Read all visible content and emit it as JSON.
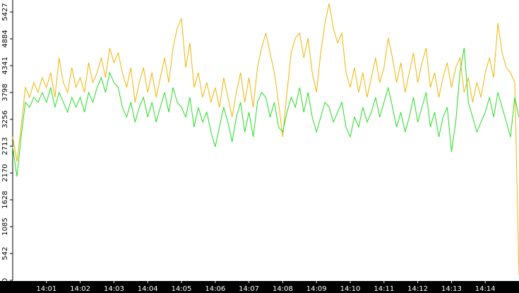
{
  "chart_data": {
    "type": "line",
    "x": [
      0,
      0.125,
      0.25,
      0.375,
      0.5,
      0.625,
      0.75,
      0.875,
      1,
      1.125,
      1.25,
      1.375,
      1.5,
      1.625,
      1.75,
      1.875,
      2,
      2.125,
      2.25,
      2.375,
      2.5,
      2.625,
      2.75,
      2.875,
      3,
      3.125,
      3.25,
      3.375,
      3.5,
      3.625,
      3.75,
      3.875,
      4,
      4.125,
      4.25,
      4.375,
      4.5,
      4.625,
      4.75,
      4.875,
      5,
      5.125,
      5.25,
      5.375,
      5.5,
      5.625,
      5.75,
      5.875,
      6,
      6.125,
      6.25,
      6.375,
      6.5,
      6.625,
      6.75,
      6.875,
      7,
      7.125,
      7.25,
      7.375,
      7.5,
      7.625,
      7.75,
      7.875,
      8,
      8.125,
      8.25,
      8.375,
      8.5,
      8.625,
      8.75,
      8.875,
      9,
      9.125,
      9.25,
      9.375,
      9.5,
      9.625,
      9.75,
      9.875,
      10,
      10.125,
      10.25,
      10.375,
      10.5,
      10.625,
      10.75,
      10.875,
      11,
      11.125,
      11.25,
      11.375,
      11.5,
      11.625,
      11.75,
      11.875,
      12,
      12.125,
      12.25,
      12.375,
      12.5,
      12.625,
      12.75,
      12.875,
      13,
      13.125,
      13.25,
      13.375,
      13.5,
      13.625,
      13.75,
      13.875,
      14,
      14.125,
      14.25,
      14.375,
      14.5,
      14.625,
      14.75,
      14.875,
      15
    ],
    "series": [
      {
        "color": "#f0b400",
        "values": [
          2900,
          2400,
          3100,
          3900,
          3700,
          4000,
          3800,
          4100,
          3900,
          4200,
          3700,
          4500,
          4000,
          3800,
          4300,
          3900,
          4100,
          3800,
          4400,
          4000,
          4200,
          4500,
          4100,
          4700,
          4400,
          4600,
          4200,
          3900,
          4300,
          3600,
          4000,
          4300,
          3800,
          4200,
          3700,
          4100,
          4500,
          4000,
          4700,
          5100,
          5300,
          4300,
          4800,
          3900,
          4200,
          3700,
          4000,
          3600,
          3900,
          3500,
          4100,
          3700,
          3300,
          3800,
          4200,
          3600,
          4100,
          3500,
          4300,
          4700,
          5000,
          4600,
          4200,
          3600,
          2900,
          3800,
          4600,
          4900,
          5000,
          4500,
          4900,
          4200,
          3800,
          4600,
          5200,
          5600,
          5100,
          4800,
          5000,
          4200,
          3900,
          4300,
          3800,
          4200,
          3700,
          4100,
          4500,
          4000,
          4300,
          4900,
          4500,
          4000,
          4400,
          3800,
          4200,
          4600,
          4000,
          4400,
          4700,
          3900,
          4200,
          3700,
          4100,
          4400,
          3900,
          4300,
          4500,
          3800,
          4100,
          3600,
          4000,
          3700,
          4200,
          4500,
          4100,
          5200,
          4600,
          4300,
          4200,
          4000,
          100
        ]
      },
      {
        "color": "#22dd22",
        "values": [
          2700,
          2100,
          2900,
          3600,
          3500,
          3700,
          3600,
          3800,
          3600,
          3900,
          3500,
          3800,
          3600,
          3400,
          3700,
          3500,
          3700,
          3400,
          3800,
          3600,
          3900,
          4100,
          3800,
          4200,
          4000,
          3900,
          3500,
          3300,
          3600,
          3200,
          3500,
          3700,
          3300,
          3600,
          3200,
          3500,
          3800,
          3400,
          3900,
          3600,
          3500,
          3300,
          3700,
          3100,
          3500,
          3200,
          3400,
          3000,
          2700,
          3100,
          3500,
          3200,
          2800,
          3300,
          3600,
          3000,
          3400,
          2900,
          3600,
          3800,
          3700,
          3300,
          3600,
          3100,
          3000,
          3400,
          3700,
          3500,
          3900,
          3400,
          3800,
          3300,
          3000,
          3300,
          3600,
          3500,
          3200,
          3400,
          3600,
          3100,
          2900,
          3300,
          3100,
          3500,
          3200,
          3400,
          3700,
          3300,
          3600,
          3900,
          3500,
          3100,
          3400,
          3000,
          3300,
          3700,
          3200,
          3500,
          3800,
          3100,
          3400,
          2900,
          3300,
          3500,
          2600,
          3200,
          4200,
          4700,
          3600,
          3300,
          3000,
          3200,
          3400,
          3700,
          3300,
          3800,
          3500,
          3200,
          2900,
          3700,
          3300
        ]
      }
    ],
    "xlim": [
      0,
      15
    ],
    "xticks": [
      {
        "value": 1,
        "label": "14:01"
      },
      {
        "value": 2,
        "label": "14:02"
      },
      {
        "value": 3,
        "label": "14:03"
      },
      {
        "value": 4,
        "label": "14:04"
      },
      {
        "value": 5,
        "label": "14:05"
      },
      {
        "value": 6,
        "label": "14:06"
      },
      {
        "value": 7,
        "label": "14:07"
      },
      {
        "value": 8,
        "label": "14:08"
      },
      {
        "value": 9,
        "label": "14:09"
      },
      {
        "value": 10,
        "label": "14:10"
      },
      {
        "value": 11,
        "label": "14:11"
      },
      {
        "value": 12,
        "label": "14:12"
      },
      {
        "value": 13,
        "label": "14:13"
      },
      {
        "value": 14,
        "label": "14:14"
      }
    ],
    "ylim": [
      0,
      5670
    ],
    "yticks": [
      0,
      542,
      1085,
      1628,
      2170,
      2713,
      3256,
      3798,
      4341,
      4884,
      5427
    ]
  }
}
